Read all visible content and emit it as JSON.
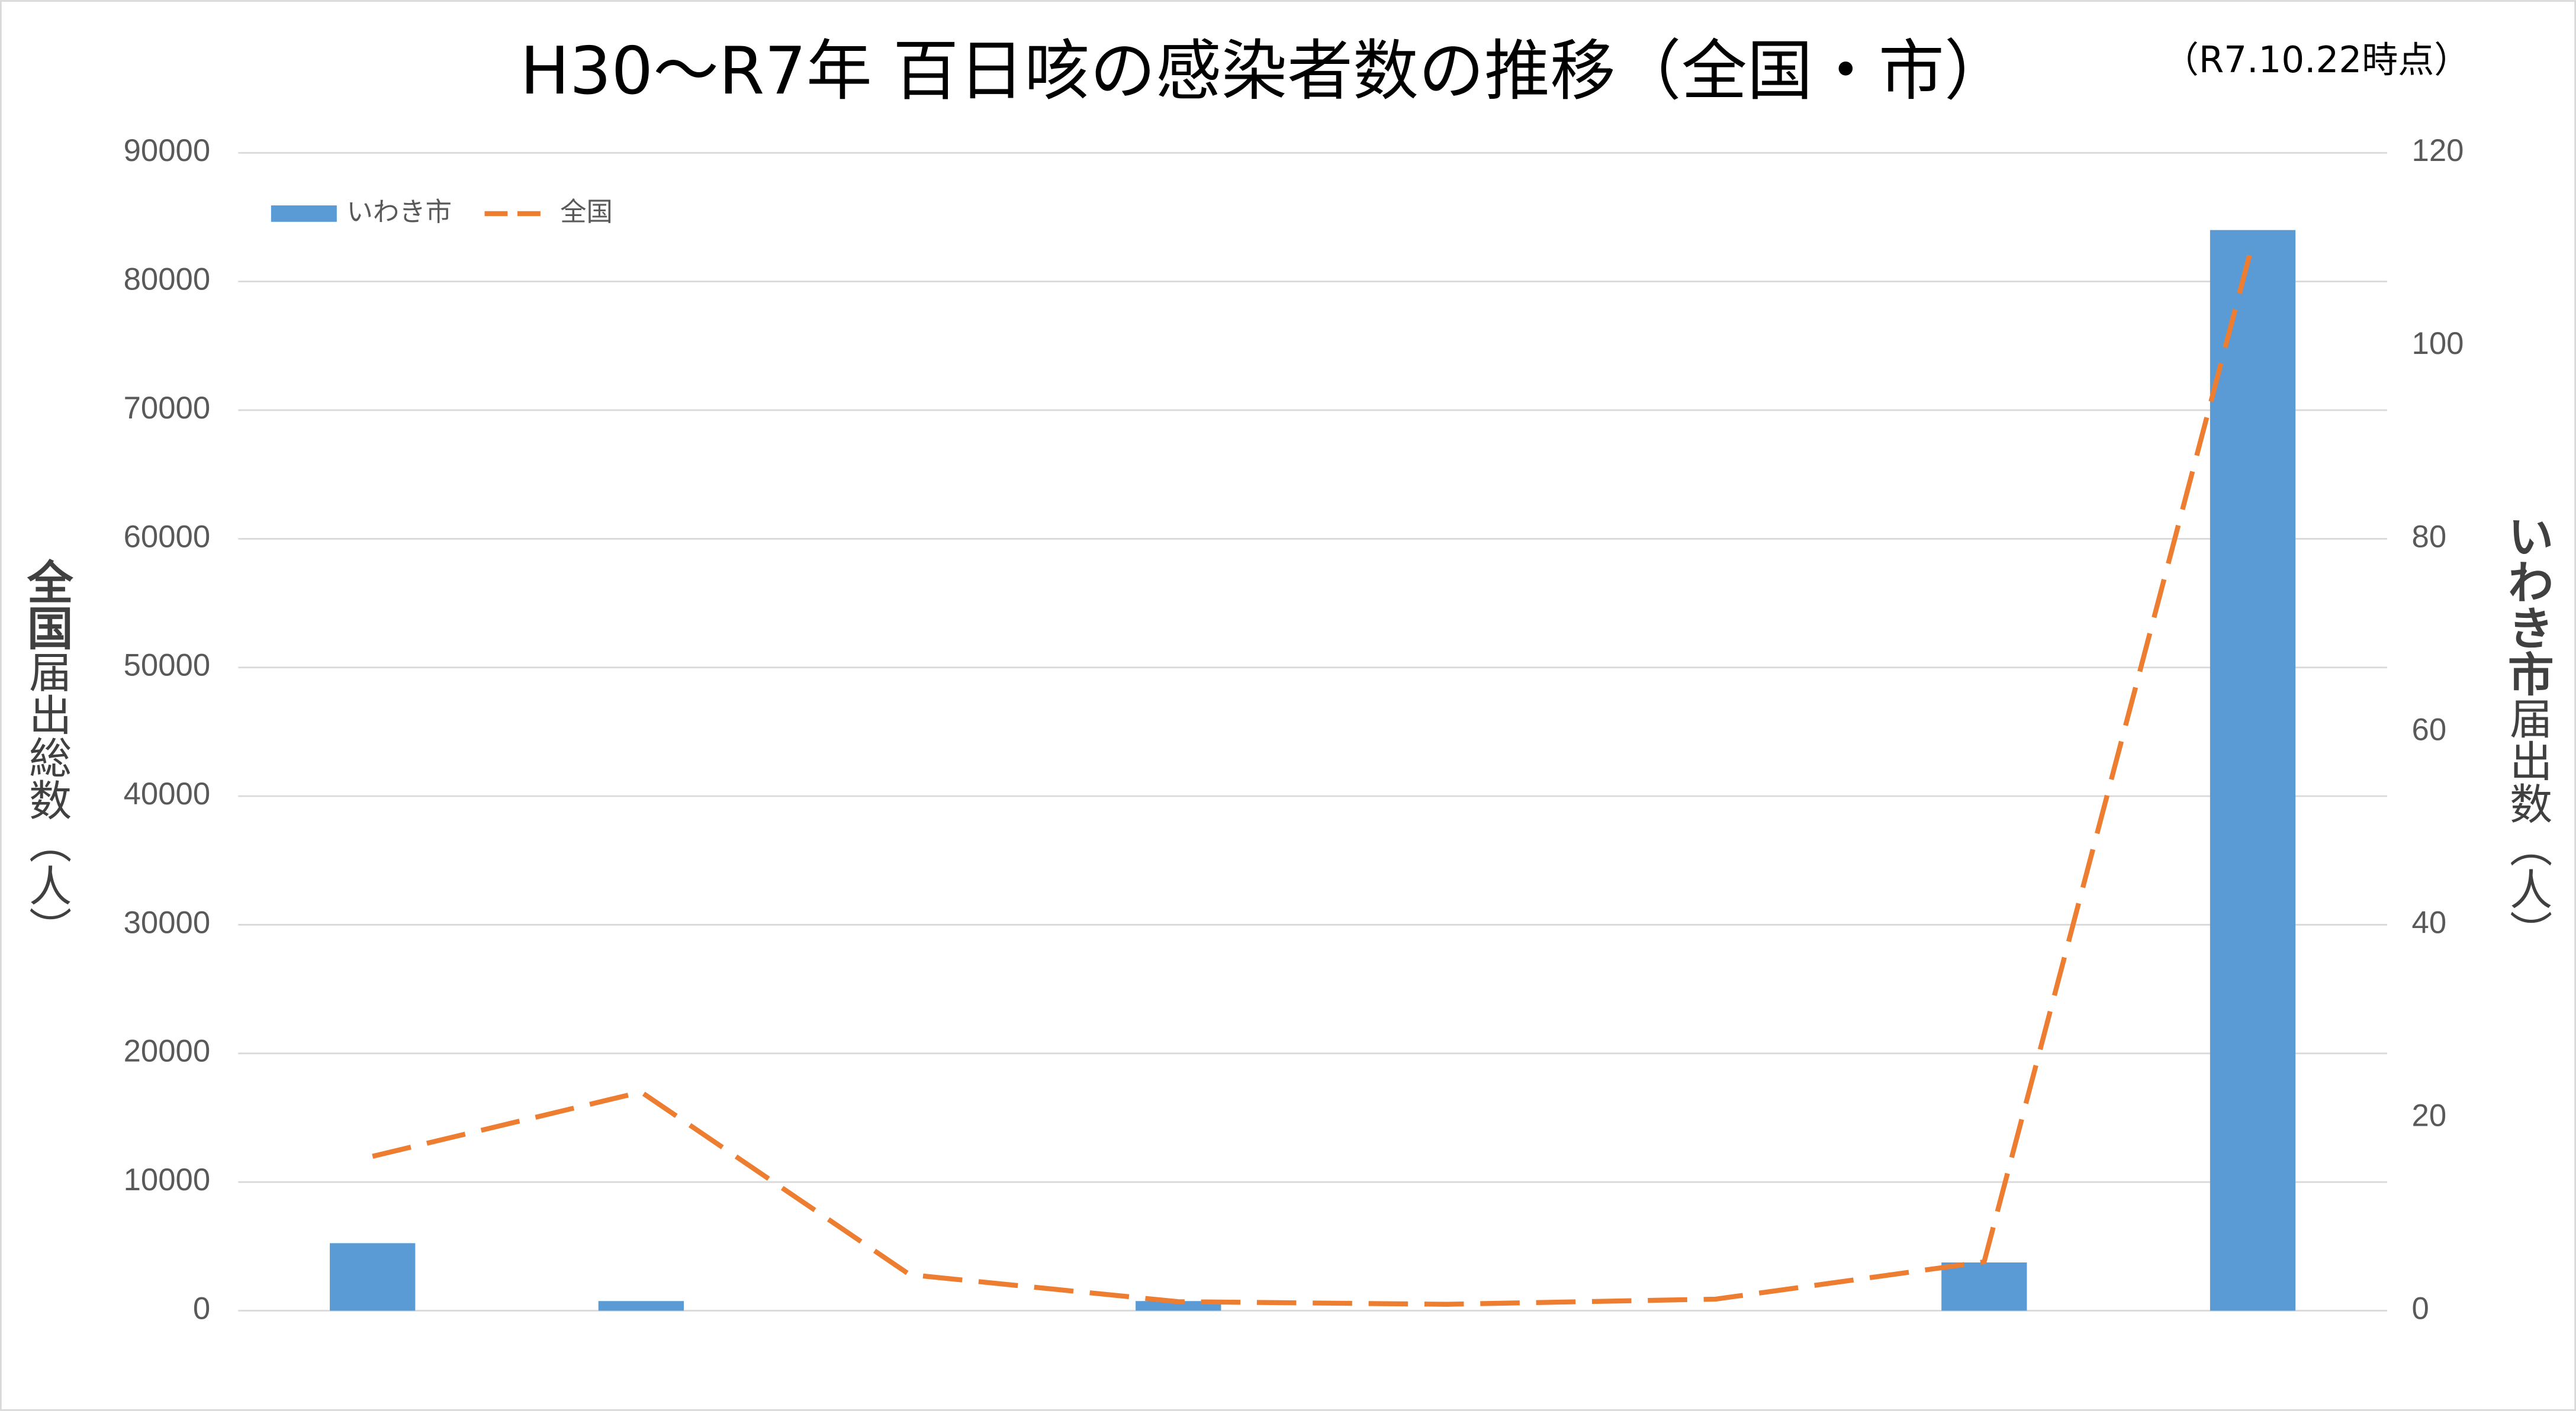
{
  "chart_data": {
    "type": "bar-line",
    "title": "H30～R7年 百日咳の感染者数の推移（全国・市）",
    "subtitle": "（R7.10.22時点）",
    "ylabel": [
      "全国",
      "届出総数（人）"
    ],
    "y2label": [
      "いわき市",
      "届出数（人）"
    ],
    "categories": [
      null,
      null,
      null,
      null,
      null,
      null,
      null,
      null
    ],
    "series": [
      {
        "name": "いわき市",
        "type": "bar",
        "axis": "y2",
        "color": "#5b9bd5",
        "values": [
          7,
          1,
          0,
          1,
          0,
          0,
          5,
          112
        ]
      },
      {
        "name": "全国",
        "type": "line",
        "axis": "y",
        "color": "#ed7d31",
        "dashed": true,
        "values": [
          12000,
          17000,
          2800,
          700,
          500,
          900,
          3800,
          83000
        ]
      }
    ],
    "ylim": [
      0,
      90000
    ],
    "yticks": [
      0,
      10000,
      20000,
      30000,
      40000,
      50000,
      60000,
      70000,
      80000,
      90000
    ],
    "y2lim": [
      0,
      120
    ],
    "y2ticks": [
      0,
      20,
      40,
      60,
      80,
      100,
      120
    ],
    "grid": true,
    "legend": "top-left"
  }
}
